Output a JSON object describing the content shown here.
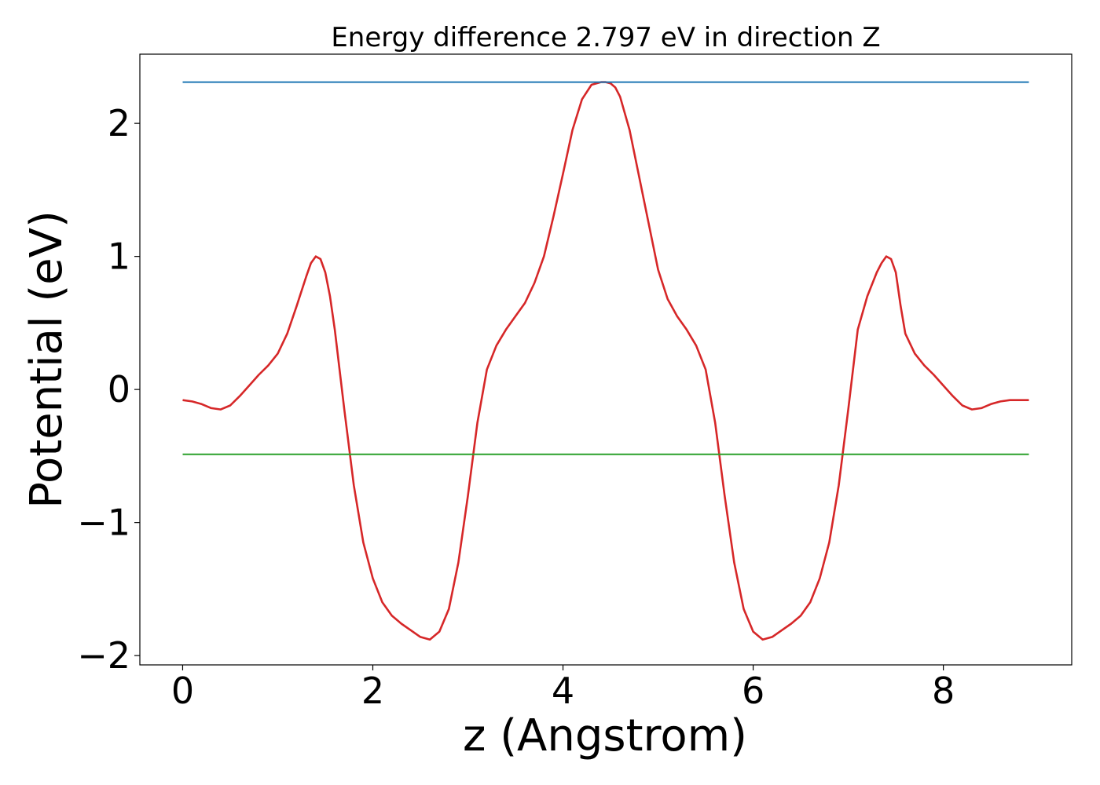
{
  "chart_data": {
    "type": "line",
    "title": "Energy difference 2.797 eV in direction Z",
    "xlabel": "z (Angstrom)",
    "ylabel": "Potential (eV)",
    "xlim": [
      -0.45,
      9.35
    ],
    "ylim": [
      -2.07,
      2.52
    ],
    "x_ticks": [
      0,
      2,
      4,
      6,
      8
    ],
    "x_tick_labels": [
      "0",
      "2",
      "4",
      "6",
      "8"
    ],
    "y_ticks": [
      -2,
      -1,
      0,
      1,
      2
    ],
    "y_tick_labels": [
      "−2",
      "−1",
      "0",
      "1",
      "2"
    ],
    "grid": false,
    "legend": "none",
    "series": [
      {
        "color": "#d62728",
        "x": [
          0,
          0.1,
          0.2,
          0.3,
          0.4,
          0.5,
          0.6,
          0.7,
          0.8,
          0.9,
          1.0,
          1.1,
          1.2,
          1.3,
          1.35,
          1.4,
          1.45,
          1.5,
          1.55,
          1.6,
          1.7,
          1.8,
          1.9,
          2.0,
          2.1,
          2.2,
          2.3,
          2.4,
          2.5,
          2.6,
          2.7,
          2.8,
          2.9,
          3.0,
          3.1,
          3.2,
          3.3,
          3.4,
          3.5,
          3.6,
          3.7,
          3.8,
          3.9,
          4.0,
          4.1,
          4.2,
          4.3,
          4.4,
          4.45,
          4.5,
          4.55,
          4.6,
          4.7,
          4.8,
          4.9,
          5.0,
          5.1,
          5.2,
          5.3,
          5.4,
          5.5,
          5.6,
          5.7,
          5.8,
          5.9,
          6.0,
          6.1,
          6.2,
          6.3,
          6.4,
          6.5,
          6.6,
          6.7,
          6.8,
          6.9,
          7.0,
          7.1,
          7.2,
          7.3,
          7.35,
          7.4,
          7.45,
          7.5,
          7.55,
          7.6,
          7.7,
          7.8,
          7.9,
          8.0,
          8.1,
          8.2,
          8.3,
          8.4,
          8.5,
          8.6,
          8.7,
          8.8,
          8.9
        ],
        "y": [
          -0.08,
          -0.09,
          -0.11,
          -0.14,
          -0.15,
          -0.12,
          -0.05,
          0.03,
          0.11,
          0.18,
          0.27,
          0.42,
          0.63,
          0.85,
          0.95,
          1.0,
          0.98,
          0.88,
          0.7,
          0.45,
          -0.15,
          -0.72,
          -1.15,
          -1.42,
          -1.6,
          -1.7,
          -1.76,
          -1.81,
          -1.86,
          -1.88,
          -1.82,
          -1.65,
          -1.3,
          -0.8,
          -0.25,
          0.15,
          0.33,
          0.45,
          0.55,
          0.65,
          0.8,
          1.0,
          1.3,
          1.62,
          1.95,
          2.18,
          2.29,
          2.31,
          2.31,
          2.3,
          2.27,
          2.2,
          1.95,
          1.6,
          1.25,
          0.9,
          0.68,
          0.55,
          0.45,
          0.33,
          0.15,
          -0.25,
          -0.8,
          -1.3,
          -1.65,
          -1.82,
          -1.88,
          -1.86,
          -1.81,
          -1.76,
          -1.7,
          -1.6,
          -1.42,
          -1.15,
          -0.72,
          -0.15,
          0.45,
          0.7,
          0.88,
          0.95,
          1.0,
          0.98,
          0.88,
          0.63,
          0.42,
          0.27,
          0.18,
          0.11,
          0.03,
          -0.05,
          -0.12,
          -0.15,
          -0.14,
          -0.11,
          -0.09,
          -0.08,
          -0.08,
          -0.08
        ]
      },
      {
        "color": "#1f77b4",
        "x": [
          0,
          8.9
        ],
        "y": [
          2.31,
          2.31
        ]
      },
      {
        "color": "#2ca02c",
        "x": [
          0,
          8.9
        ],
        "y": [
          -0.487,
          -0.487
        ]
      }
    ]
  }
}
